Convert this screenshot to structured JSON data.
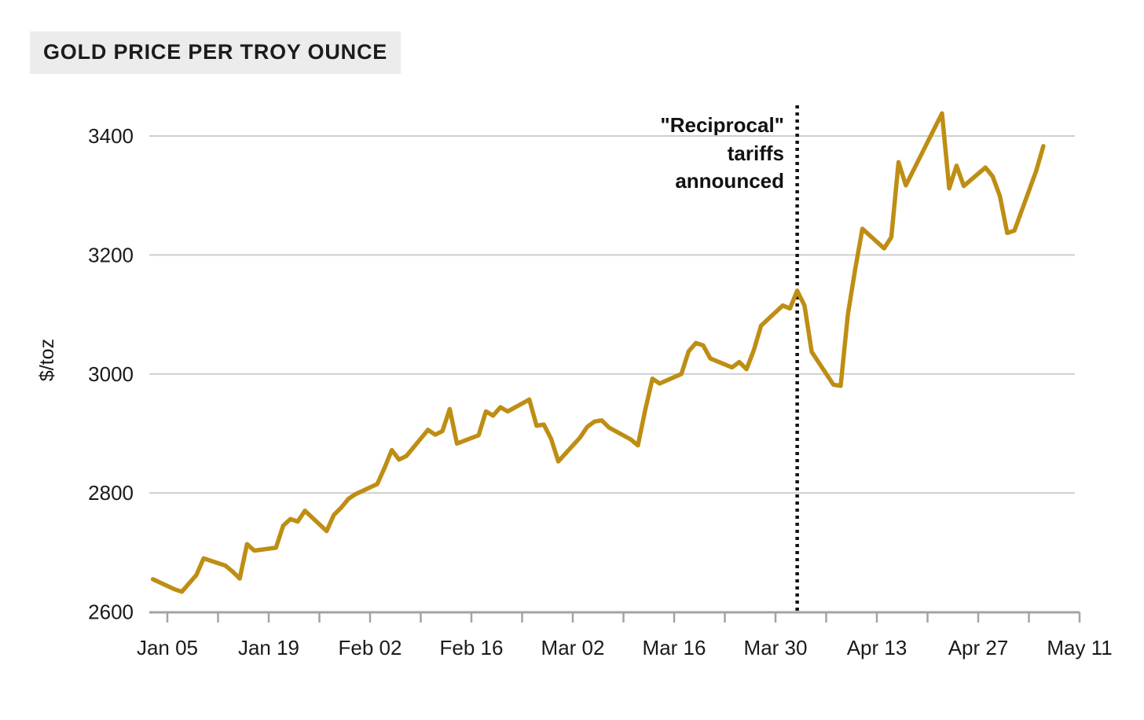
{
  "header": {
    "title": "GOLD PRICE PER TROY OUNCE"
  },
  "colors": {
    "line": "#BE8E14",
    "grid": "#cfcfcf",
    "axis": "#a3a3a3",
    "text": "#1a1a1a",
    "annotation": "#111111",
    "title_bg": "#ececec"
  },
  "chart_data": {
    "type": "line",
    "title": "GOLD PRICE PER TROY OUNCE",
    "xlabel": "",
    "ylabel": "$/toz",
    "ylim": [
      2600,
      3450
    ],
    "yticks": [
      2600,
      2800,
      3000,
      3200,
      3400
    ],
    "grid": "horizontal gridlines at yticks, no vertical gridlines",
    "legend_position": "none",
    "x_ticks": [
      {
        "date": "2025-01-05",
        "label": "Jan 05"
      },
      {
        "date": "2025-01-19",
        "label": "Jan 19"
      },
      {
        "date": "2025-02-02",
        "label": "Feb 02"
      },
      {
        "date": "2025-02-16",
        "label": "Feb 16"
      },
      {
        "date": "2025-03-02",
        "label": "Mar 02"
      },
      {
        "date": "2025-03-16",
        "label": "Mar 16"
      },
      {
        "date": "2025-03-30",
        "label": "Mar 30"
      },
      {
        "date": "2025-04-13",
        "label": "Apr 13"
      },
      {
        "date": "2025-04-27",
        "label": "Apr 27"
      },
      {
        "date": "2025-05-11",
        "label": "May 11"
      }
    ],
    "x_minor_ticks": [
      "2025-01-12",
      "2025-01-26",
      "2025-02-09",
      "2025-02-23",
      "2025-03-09",
      "2025-03-23",
      "2025-04-06",
      "2025-04-20",
      "2025-05-04"
    ],
    "annotation": {
      "lines": [
        "\"Reciprocal\"",
        "tariffs",
        "announced"
      ],
      "date": "2025-04-02",
      "style": "vertical dotted black line"
    },
    "series": [
      {
        "name": "Gold price ($/toz)",
        "points": [
          [
            "2025-01-03",
            2655
          ],
          [
            "2025-01-06",
            2638
          ],
          [
            "2025-01-07",
            2634
          ],
          [
            "2025-01-08",
            2648
          ],
          [
            "2025-01-09",
            2662
          ],
          [
            "2025-01-10",
            2690
          ],
          [
            "2025-01-13",
            2678
          ],
          [
            "2025-01-14",
            2668
          ],
          [
            "2025-01-15",
            2656
          ],
          [
            "2025-01-16",
            2714
          ],
          [
            "2025-01-17",
            2703
          ],
          [
            "2025-01-20",
            2708
          ],
          [
            "2025-01-21",
            2745
          ],
          [
            "2025-01-22",
            2756
          ],
          [
            "2025-01-23",
            2752
          ],
          [
            "2025-01-24",
            2770
          ],
          [
            "2025-01-27",
            2736
          ],
          [
            "2025-01-28",
            2763
          ],
          [
            "2025-01-29",
            2775
          ],
          [
            "2025-01-30",
            2790
          ],
          [
            "2025-01-31",
            2798
          ],
          [
            "2025-02-03",
            2815
          ],
          [
            "2025-02-04",
            2842
          ],
          [
            "2025-02-05",
            2872
          ],
          [
            "2025-02-06",
            2856
          ],
          [
            "2025-02-07",
            2862
          ],
          [
            "2025-02-10",
            2906
          ],
          [
            "2025-02-11",
            2898
          ],
          [
            "2025-02-12",
            2904
          ],
          [
            "2025-02-13",
            2941
          ],
          [
            "2025-02-14",
            2883
          ],
          [
            "2025-02-17",
            2897
          ],
          [
            "2025-02-18",
            2937
          ],
          [
            "2025-02-19",
            2930
          ],
          [
            "2025-02-20",
            2944
          ],
          [
            "2025-02-21",
            2937
          ],
          [
            "2025-02-24",
            2957
          ],
          [
            "2025-02-25",
            2913
          ],
          [
            "2025-02-26",
            2915
          ],
          [
            "2025-02-27",
            2891
          ],
          [
            "2025-02-28",
            2853
          ],
          [
            "2025-03-03",
            2893
          ],
          [
            "2025-03-04",
            2911
          ],
          [
            "2025-03-05",
            2920
          ],
          [
            "2025-03-06",
            2922
          ],
          [
            "2025-03-07",
            2910
          ],
          [
            "2025-03-10",
            2890
          ],
          [
            "2025-03-11",
            2880
          ],
          [
            "2025-03-12",
            2939
          ],
          [
            "2025-03-13",
            2992
          ],
          [
            "2025-03-14",
            2984
          ],
          [
            "2025-03-17",
            3000
          ],
          [
            "2025-03-18",
            3038
          ],
          [
            "2025-03-19",
            3052
          ],
          [
            "2025-03-20",
            3048
          ],
          [
            "2025-03-21",
            3026
          ],
          [
            "2025-03-24",
            3011
          ],
          [
            "2025-03-25",
            3020
          ],
          [
            "2025-03-26",
            3008
          ],
          [
            "2025-03-27",
            3040
          ],
          [
            "2025-03-28",
            3081
          ],
          [
            "2025-03-31",
            3115
          ],
          [
            "2025-04-01",
            3110
          ],
          [
            "2025-04-02",
            3140
          ],
          [
            "2025-04-03",
            3115
          ],
          [
            "2025-04-04",
            3037
          ],
          [
            "2025-04-07",
            2982
          ],
          [
            "2025-04-08",
            2980
          ],
          [
            "2025-04-09",
            3100
          ],
          [
            "2025-04-10",
            3176
          ],
          [
            "2025-04-11",
            3244
          ],
          [
            "2025-04-14",
            3211
          ],
          [
            "2025-04-15",
            3230
          ],
          [
            "2025-04-16",
            3356
          ],
          [
            "2025-04-17",
            3317
          ],
          [
            "2025-04-22",
            3438
          ],
          [
            "2025-04-23",
            3312
          ],
          [
            "2025-04-24",
            3350
          ],
          [
            "2025-04-25",
            3316
          ],
          [
            "2025-04-28",
            3347
          ],
          [
            "2025-04-29",
            3332
          ],
          [
            "2025-04-30",
            3299
          ],
          [
            "2025-05-01",
            3237
          ],
          [
            "2025-05-02",
            3241
          ],
          [
            "2025-05-05",
            3341
          ],
          [
            "2025-05-06",
            3383
          ]
        ]
      }
    ]
  }
}
